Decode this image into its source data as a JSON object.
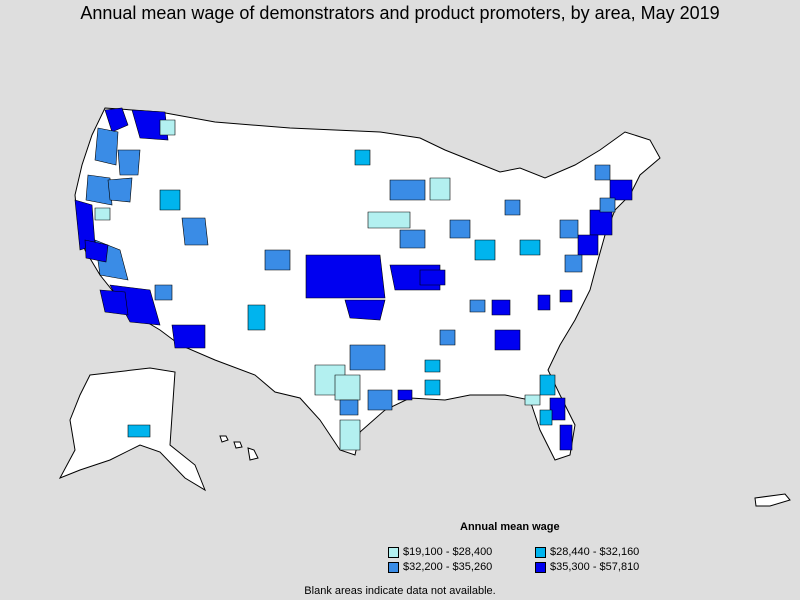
{
  "title": "Annual mean wage of demonstrators and product promoters, by area, May 2019",
  "legend": {
    "title": "Annual mean wage",
    "items": [
      {
        "label": "$19,100 - $28,400",
        "color": "#b3f0f0"
      },
      {
        "label": "$28,440 - $32,160",
        "color": "#00b4ee"
      },
      {
        "label": "$32,200 - $35,260",
        "color": "#3a8ce6"
      },
      {
        "label": "$35,300 - $57,810",
        "color": "#0000f0"
      }
    ]
  },
  "footnote": "Blank areas indicate data not available.",
  "colors": {
    "background": "#dedede",
    "no_data": "#ffffff",
    "tier1": "#b3f0f0",
    "tier2": "#00b4ee",
    "tier3": "#3a8ce6",
    "tier4": "#0000f0"
  }
}
